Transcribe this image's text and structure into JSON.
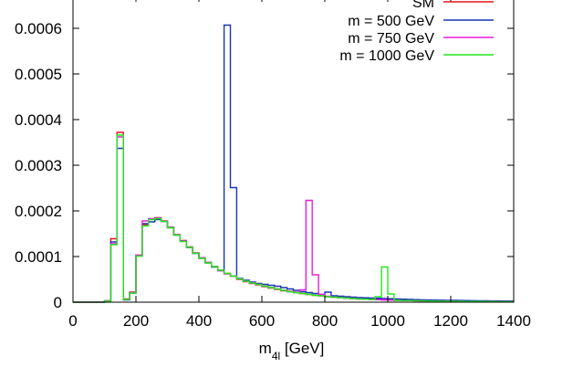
{
  "chart_data": {
    "type": "line",
    "title": "",
    "xlabel_main": "m",
    "xlabel_sub": "4l",
    "xlabel_unit": " [GeV]",
    "ylabel": "",
    "xlim": [
      0,
      1400
    ],
    "ylim": [
      0,
      0.0006
    ],
    "x_ticks": [
      "0",
      "200",
      "400",
      "600",
      "800",
      "1000",
      "1200",
      "1400"
    ],
    "y_ticks": [
      "0",
      "0.0001",
      "0.0002",
      "0.0003",
      "0.0004",
      "0.0005",
      "0.0006"
    ],
    "legend_position": "top-right",
    "bin_width": 20,
    "bin_edges_start": 0,
    "series": [
      {
        "name": "SM",
        "color": "#e4161b",
        "values": [
          0,
          0,
          0,
          0,
          0,
          2.5e-06,
          0.000139,
          0.000372,
          7e-06,
          2.2e-05,
          0.000103,
          0.00017,
          0.000182,
          0.000185,
          0.000178,
          0.000163,
          0.000148,
          0.000135,
          0.000121,
          0.000108,
          9.7e-05,
          8.7e-05,
          7.8e-05,
          7e-05,
          6.3e-05,
          5.7e-05,
          5e-05,
          4.5e-05,
          4.1e-05,
          3.8e-05,
          3.4e-05,
          3.1e-05,
          2.8e-05,
          2.5e-05,
          2.3e-05,
          2.1e-05,
          1.9e-05,
          1.7e-05,
          1.5e-05,
          1.4e-05,
          1.2e-05,
          1.1e-05,
          1e-05,
          9e-06,
          8e-06,
          7e-06,
          6.5e-06,
          6e-06,
          5.5e-06,
          5e-06,
          4.5e-06,
          4e-06,
          3.7e-06,
          3.4e-06,
          3.1e-06,
          2.8e-06,
          2.6e-06,
          2.4e-06,
          2.2e-06,
          2e-06,
          1.9e-06,
          1.8e-06,
          1.7e-06,
          1.6e-06,
          1.5e-06,
          1.4e-06,
          1.3e-06,
          1.2e-06,
          1.2e-06,
          1.1e-06
        ]
      },
      {
        "name": "m = 500 GeV",
        "color": "#1a33b5",
        "values": [
          0,
          0,
          0,
          0,
          0,
          3e-06,
          0.000132,
          0.000337,
          5e-06,
          2e-05,
          0.000102,
          0.000172,
          0.000176,
          0.000181,
          0.000177,
          0.000164,
          0.000147,
          0.000134,
          0.00012,
          0.000107,
          9.6e-05,
          8.6e-05,
          7.7e-05,
          6.9e-05,
          6.3e-05,
          5.7e-05,
          5.2e-05,
          4.8e-05,
          4.4e-05,
          4.1e-05,
          3.9e-05,
          3.7e-05,
          3.5e-05,
          3.2e-05,
          2.9e-05,
          2.6e-05,
          2.3e-05,
          2.1e-05,
          1.9e-05,
          1.7e-05,
          1.5e-05,
          1.4e-05,
          1.3e-05,
          1.2e-05,
          1.1e-05,
          1e-05,
          9.5e-06,
          9e-06,
          8.5e-06,
          8e-06,
          7.5e-06,
          7e-06,
          6.5e-06,
          6e-06,
          5.5e-06,
          5e-06,
          4.8e-06,
          4.6e-06,
          4.4e-06,
          4.2e-06,
          4e-06,
          3.8e-06,
          3.6e-06,
          3.4e-06,
          3.2e-06,
          3e-06,
          2.9e-06,
          2.8e-06,
          2.7e-06,
          2.6e-06
        ],
        "overrides": {
          "24": 0.000607,
          "25": 0.000251,
          "40": 2.2e-05,
          "41": 1.4e-05
        }
      },
      {
        "name": "m = 750 GeV",
        "color": "#e81ee0",
        "values": [
          0,
          0,
          0,
          0,
          0,
          2.5e-06,
          0.000128,
          0.000362,
          6e-06,
          2.1e-05,
          0.000103,
          0.000178,
          0.000183,
          0.000184,
          0.000177,
          0.000164,
          0.000148,
          0.000134,
          0.00012,
          0.000107,
          9.7e-05,
          8.7e-05,
          7.8e-05,
          6.9e-05,
          6.2e-05,
          5.7e-05,
          5.1e-05,
          4.6e-05,
          4.2e-05,
          3.9e-05,
          3.5e-05,
          3.2e-05,
          2.9e-05,
          2.6e-05,
          2.4e-05,
          2.2e-05,
          2e-05,
          1.8e-05,
          1.6e-05,
          1.4e-05,
          1.3e-05,
          1.1e-05,
          1e-05,
          9e-06,
          8e-06,
          7e-06,
          6.5e-06,
          6e-06,
          5.5e-06,
          5e-06,
          4.5e-06,
          4e-06,
          3.7e-06,
          3.4e-06,
          3.1e-06,
          2.8e-06,
          2.6e-06,
          2.4e-06,
          2.2e-06,
          2e-06,
          1.9e-06,
          1.8e-06,
          1.7e-06,
          1.6e-06,
          1.5e-06,
          1.4e-06,
          1.3e-06,
          1.2e-06,
          1.2e-06,
          1.1e-06
        ],
        "overrides": {
          "36": 2.7e-05,
          "37": 0.000223,
          "38": 6e-05,
          "39": 1.7e-05
        }
      },
      {
        "name": "m = 1000 GeV",
        "color": "#22e61f",
        "values": [
          0,
          0,
          0,
          0,
          0,
          2e-06,
          0.000126,
          0.000366,
          6e-06,
          2e-05,
          0.000101,
          0.000167,
          0.000181,
          0.000183,
          0.000177,
          0.000163,
          0.000147,
          0.000133,
          0.00012,
          0.000107,
          9.6e-05,
          8.6e-05,
          7.8e-05,
          7e-05,
          6.3e-05,
          5.7e-05,
          5.1e-05,
          4.6e-05,
          4.2e-05,
          3.9e-05,
          3.5e-05,
          3.2e-05,
          2.9e-05,
          2.6e-05,
          2.3e-05,
          2.1e-05,
          1.9e-05,
          1.7e-05,
          1.5e-05,
          1.4e-05,
          1.2e-05,
          1.1e-05,
          1e-05,
          9e-06,
          8e-06,
          7e-06,
          6.5e-06,
          6e-06,
          5.5e-06,
          5e-06,
          4.5e-06,
          4e-06,
          3.7e-06,
          3.4e-06,
          3.1e-06,
          2.8e-06,
          2.6e-06,
          2.4e-06,
          2.2e-06,
          2e-06,
          1.9e-06,
          1.8e-06,
          1.7e-06,
          1.6e-06,
          1.5e-06,
          1.4e-06,
          1.3e-06,
          1.2e-06,
          1.2e-06,
          1.1e-06
        ],
        "overrides": {
          "48": 1.2e-05,
          "49": 7.7e-05,
          "50": 1.8e-05
        }
      }
    ]
  }
}
